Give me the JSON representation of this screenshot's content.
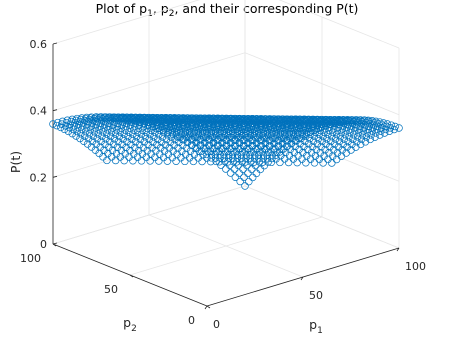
{
  "chart_data": {
    "type": "scatter",
    "title": "Plot of p₁, p₂, and their corresponding P(t)",
    "title_parts": {
      "t1": "Plot of p",
      "s1": "1",
      "t2": ", p",
      "s2": "2",
      "t3": ", and their corresponding P(t)"
    },
    "xlabel": {
      "base": "p",
      "sub": "1"
    },
    "ylabel": {
      "base": "p",
      "sub": "2"
    },
    "zlabel": "P(t)",
    "xlim": [
      0,
      100
    ],
    "ylim": [
      0,
      100
    ],
    "zlim": [
      0,
      0.6
    ],
    "xticks": [
      "0",
      "50",
      "100"
    ],
    "yticks": [
      "0",
      "50",
      "100"
    ],
    "zticks": [
      "0",
      "0.2",
      "0.4",
      "0.6"
    ],
    "grid": true,
    "marker": "circle",
    "surface": "P(t) = 0.36 * (1 - ((p1 + p2 - 100) / 100)^2) for 0 <= p1, p2 <= 100, with P(t) = 0 where p1 + p2 < 65 (V-shaped cutout near the origin)",
    "max_z": 0.36,
    "marker_color": "#0072bd"
  }
}
